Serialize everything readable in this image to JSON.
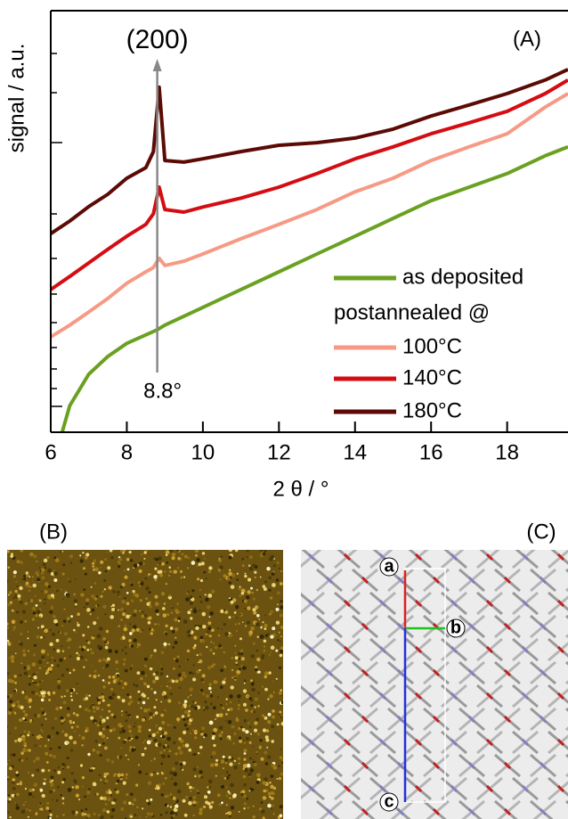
{
  "chart_data": {
    "type": "line",
    "ylabel": "signal / a.u.",
    "xlabel": "2 θ / °",
    "panel_label": "(A)",
    "xlim": [
      6,
      19.6
    ],
    "xticks": [
      6,
      8,
      10,
      12,
      14,
      16,
      18
    ],
    "ylim": [
      0,
      100
    ],
    "log_y": true,
    "peak": {
      "name": "(200)",
      "label": "8.8°",
      "x": 8.8
    },
    "legend_title": "postannealed @",
    "series": [
      {
        "name": "as deposited",
        "color": "#6aa121",
        "x": [
          6.3,
          6.5,
          7,
          7.5,
          8,
          8.8,
          9,
          10,
          11,
          12,
          13,
          14,
          15,
          16,
          17,
          18,
          19,
          19.6
        ],
        "values": [
          0,
          6.3,
          13.7,
          17.9,
          21,
          24.2,
          25.3,
          29.5,
          33.7,
          37.9,
          42.1,
          46.3,
          50.5,
          54.7,
          57.9,
          61.1,
          65.3,
          67.4
        ]
      },
      {
        "name": "100°C",
        "color": "#f79a85",
        "x": [
          6,
          6.5,
          7,
          7.5,
          8,
          8.5,
          8.7,
          8.85,
          9,
          9.5,
          10,
          11,
          12,
          13,
          14,
          15,
          16,
          17,
          18,
          19,
          19.6
        ],
        "values": [
          22.5,
          25.3,
          28.4,
          31.6,
          35.2,
          37.9,
          38.9,
          41.1,
          39.4,
          40.4,
          42.1,
          45.7,
          49.1,
          52.6,
          56.8,
          60,
          64.2,
          67.4,
          70.5,
          76.8,
          80
        ]
      },
      {
        "name": "140°C",
        "color": "#d40d12",
        "x": [
          6,
          6.5,
          7,
          7.5,
          8,
          8.5,
          8.7,
          8.85,
          9,
          9.5,
          10,
          11,
          12,
          13,
          14,
          15,
          16,
          17,
          18,
          19,
          19.6
        ],
        "values": [
          33.7,
          36.8,
          40,
          43.2,
          46.3,
          49.1,
          51.6,
          57.9,
          52.6,
          52,
          53.2,
          55.3,
          57.9,
          61.1,
          64.6,
          67.4,
          70.5,
          73.1,
          75.8,
          80,
          83.2
        ]
      },
      {
        "name": "180°C",
        "color": "#5c0a05",
        "x": [
          6,
          6.5,
          7,
          7.5,
          8,
          8.5,
          8.7,
          8.85,
          9,
          9.5,
          10,
          11,
          12,
          13,
          14,
          15,
          16,
          17,
          18,
          19,
          19.6
        ],
        "values": [
          46.9,
          49.9,
          53.3,
          56.2,
          60,
          62.5,
          66.3,
          81.5,
          64.2,
          63.8,
          64.6,
          66.3,
          67.8,
          68.4,
          69.5,
          71.6,
          74.7,
          77.3,
          80,
          83.2,
          85.7
        ]
      }
    ]
  },
  "panel_b": {
    "label": "(B)"
  },
  "panel_c": {
    "label": "(C)",
    "axes": [
      "a",
      "b",
      "c"
    ]
  }
}
